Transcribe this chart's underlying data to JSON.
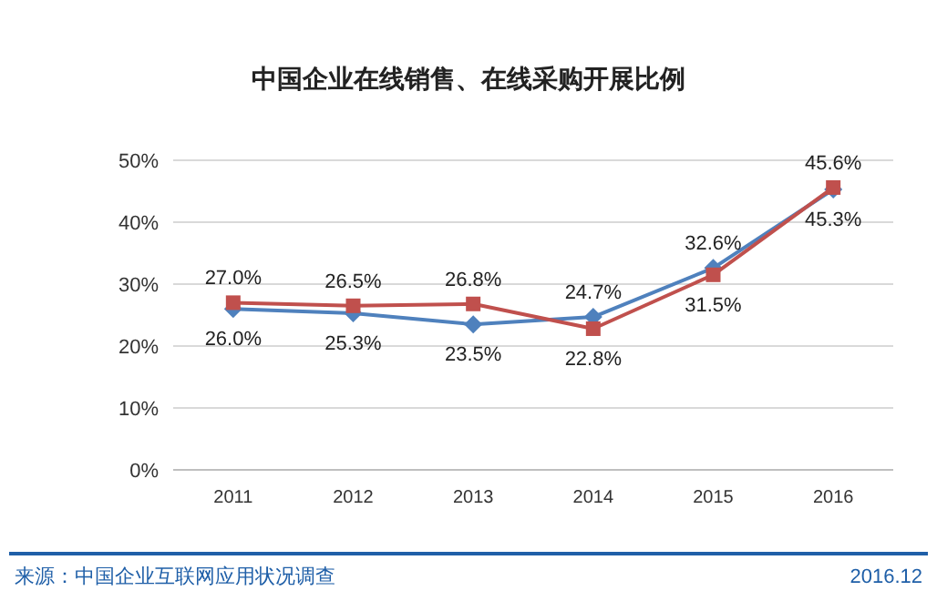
{
  "chart_data": {
    "type": "line",
    "title": "中国企业在线销售、在线采购开展比例",
    "categories": [
      "2011",
      "2012",
      "2013",
      "2014",
      "2015",
      "2016"
    ],
    "series": [
      {
        "color": "#4f81bd",
        "marker": "diamond",
        "values": [
          26.0,
          25.3,
          23.5,
          24.7,
          32.6,
          45.3
        ],
        "value_labels": [
          "26.0%",
          "25.3%",
          "23.5%",
          "24.7%",
          "32.6%",
          "45.3%"
        ]
      },
      {
        "color": "#c0504d",
        "marker": "square",
        "values": [
          27.0,
          26.5,
          26.8,
          22.8,
          31.5,
          45.6
        ],
        "value_labels": [
          "27.0%",
          "26.5%",
          "26.8%",
          "22.8%",
          "31.5%",
          "45.6%"
        ]
      }
    ],
    "ylim": [
      0,
      50
    ],
    "yticks": [
      {
        "value": 0,
        "label": "0%"
      },
      {
        "value": 10,
        "label": "10%"
      },
      {
        "value": 20,
        "label": "20%"
      },
      {
        "value": 30,
        "label": "30%"
      },
      {
        "value": 40,
        "label": "40%"
      },
      {
        "value": 50,
        "label": "50%"
      }
    ],
    "grid": "y",
    "annotations": [
      "来源：中国企业互联网应用状况调查",
      "2016.12"
    ]
  }
}
